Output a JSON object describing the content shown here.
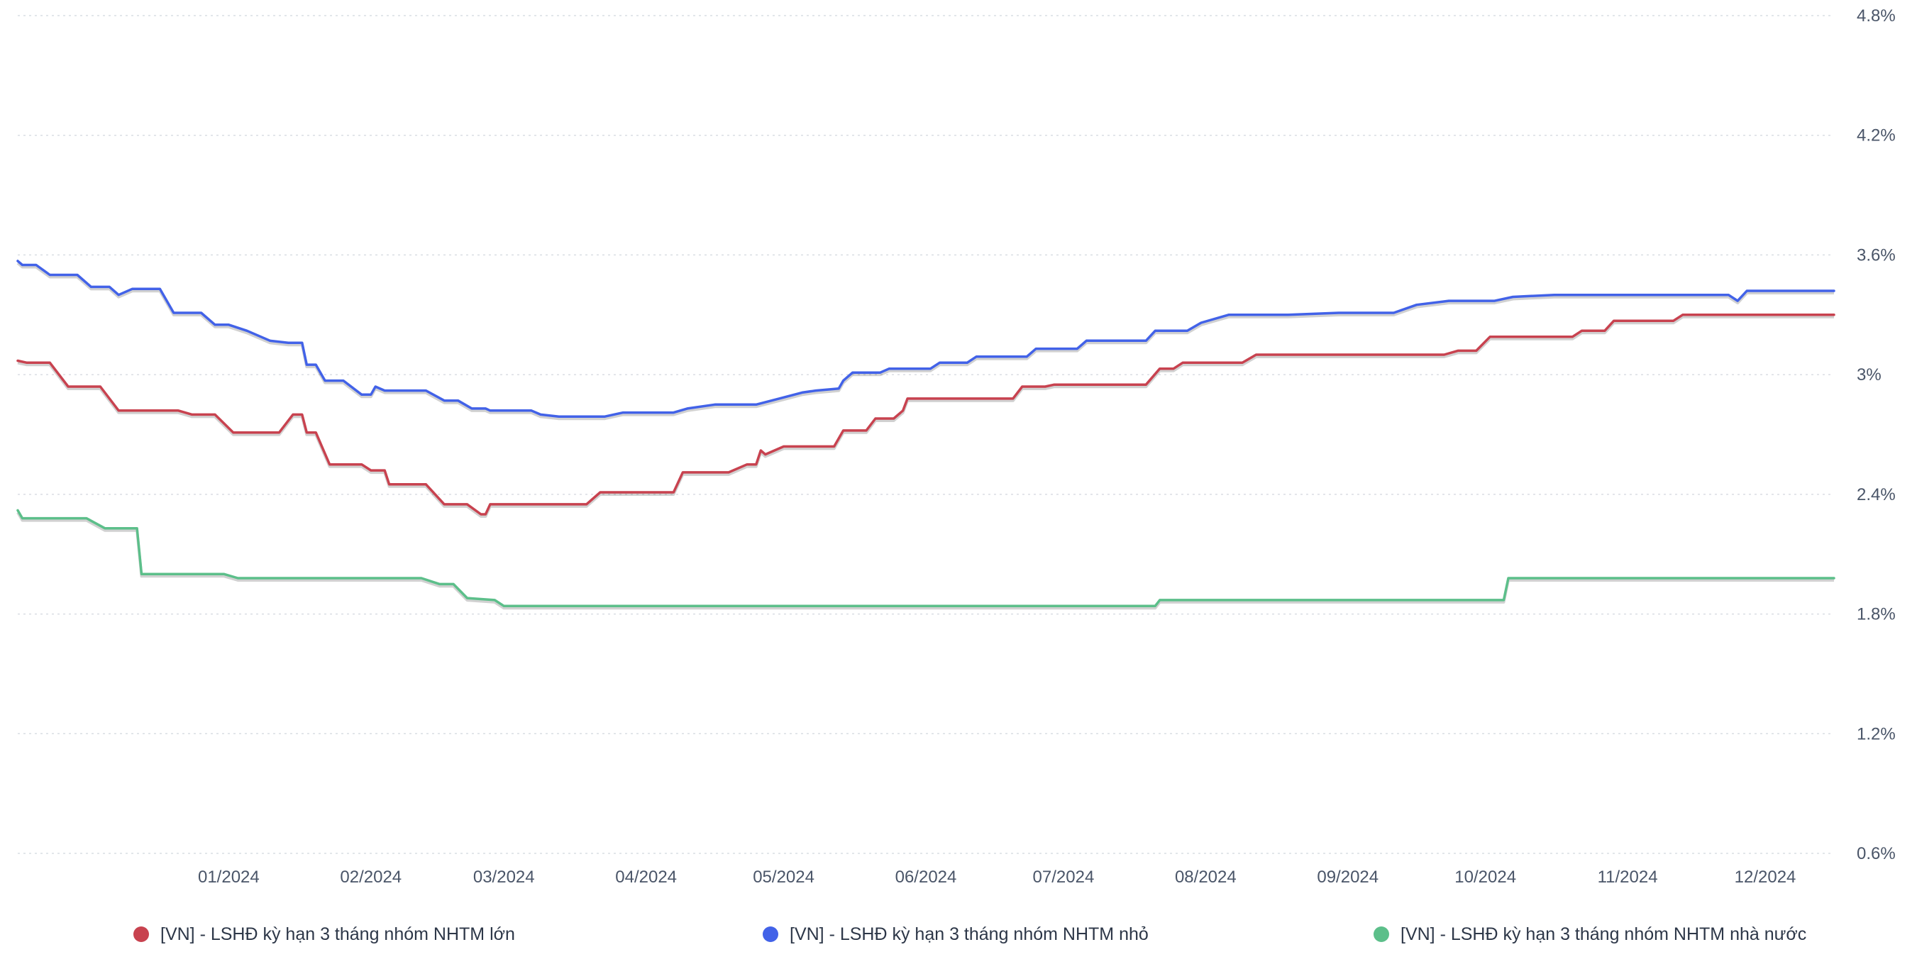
{
  "chart_data": {
    "type": "line",
    "x_tick_labels": [
      "01/2024",
      "02/2024",
      "03/2024",
      "04/2024",
      "05/2024",
      "06/2024",
      "07/2024",
      "08/2024",
      "09/2024",
      "10/2024",
      "11/2024",
      "12/2024"
    ],
    "y_tick_labels": [
      "4.8%",
      "4.2%",
      "3.6%",
      "3%",
      "2.4%",
      "1.8%",
      "1.2%",
      "0.6%"
    ],
    "y_ticks": [
      4.8,
      4.2,
      3.6,
      3.0,
      2.4,
      1.8,
      1.2,
      0.6
    ],
    "ylim": [
      0.6,
      4.8
    ],
    "xlim": [
      "2023-12-01",
      "2024-12-31"
    ],
    "grid": true,
    "legend_position": "bottom",
    "series": [
      {
        "name": "[VN] - LSHĐ kỳ hạn 3 tháng nhóm NHTM lớn",
        "color": "#c8424f",
        "points": [
          [
            "2023-12-01",
            3.07
          ],
          [
            "2023-12-03",
            3.06
          ],
          [
            "2023-12-08",
            3.06
          ],
          [
            "2023-12-12",
            2.94
          ],
          [
            "2023-12-19",
            2.94
          ],
          [
            "2023-12-23",
            2.82
          ],
          [
            "2024-01-05",
            2.82
          ],
          [
            "2024-01-08",
            2.8
          ],
          [
            "2024-01-13",
            2.8
          ],
          [
            "2024-01-17",
            2.71
          ],
          [
            "2024-01-27",
            2.71
          ],
          [
            "2024-01-30",
            2.8
          ],
          [
            "2024-02-01",
            2.8
          ],
          [
            "2024-02-02",
            2.71
          ],
          [
            "2024-02-04",
            2.71
          ],
          [
            "2024-02-07",
            2.55
          ],
          [
            "2024-02-14",
            2.55
          ],
          [
            "2024-02-16",
            2.52
          ],
          [
            "2024-02-19",
            2.52
          ],
          [
            "2024-02-20",
            2.45
          ],
          [
            "2024-02-28",
            2.45
          ],
          [
            "2024-03-03",
            2.35
          ],
          [
            "2024-03-08",
            2.35
          ],
          [
            "2024-03-11",
            2.3
          ],
          [
            "2024-03-12",
            2.3
          ],
          [
            "2024-03-13",
            2.35
          ],
          [
            "2024-04-03",
            2.35
          ],
          [
            "2024-04-06",
            2.41
          ],
          [
            "2024-04-22",
            2.41
          ],
          [
            "2024-04-24",
            2.51
          ],
          [
            "2024-05-04",
            2.51
          ],
          [
            "2024-05-08",
            2.55
          ],
          [
            "2024-05-10",
            2.55
          ],
          [
            "2024-05-11",
            2.62
          ],
          [
            "2024-05-12",
            2.6
          ],
          [
            "2024-05-16",
            2.64
          ],
          [
            "2024-05-27",
            2.64
          ],
          [
            "2024-05-29",
            2.72
          ],
          [
            "2024-06-03",
            2.72
          ],
          [
            "2024-06-05",
            2.78
          ],
          [
            "2024-06-09",
            2.78
          ],
          [
            "2024-06-11",
            2.82
          ],
          [
            "2024-06-12",
            2.88
          ],
          [
            "2024-07-05",
            2.88
          ],
          [
            "2024-07-07",
            2.94
          ],
          [
            "2024-07-12",
            2.94
          ],
          [
            "2024-07-14",
            2.95
          ],
          [
            "2024-08-03",
            2.95
          ],
          [
            "2024-08-06",
            3.03
          ],
          [
            "2024-08-09",
            3.03
          ],
          [
            "2024-08-11",
            3.06
          ],
          [
            "2024-08-24",
            3.06
          ],
          [
            "2024-08-27",
            3.1
          ],
          [
            "2024-10-07",
            3.1
          ],
          [
            "2024-10-10",
            3.12
          ],
          [
            "2024-10-14",
            3.12
          ],
          [
            "2024-10-17",
            3.19
          ],
          [
            "2024-11-04",
            3.19
          ],
          [
            "2024-11-06",
            3.22
          ],
          [
            "2024-11-11",
            3.22
          ],
          [
            "2024-11-13",
            3.27
          ],
          [
            "2024-11-26",
            3.27
          ],
          [
            "2024-11-28",
            3.3
          ],
          [
            "2024-12-31",
            3.3
          ]
        ]
      },
      {
        "name": "[VN] - LSHĐ kỳ hạn 3 tháng nhóm NHTM nhỏ",
        "color": "#4262e8",
        "points": [
          [
            "2023-12-01",
            3.57
          ],
          [
            "2023-12-02",
            3.55
          ],
          [
            "2023-12-05",
            3.55
          ],
          [
            "2023-12-08",
            3.5
          ],
          [
            "2023-12-14",
            3.5
          ],
          [
            "2023-12-17",
            3.44
          ],
          [
            "2023-12-21",
            3.44
          ],
          [
            "2023-12-23",
            3.4
          ],
          [
            "2023-12-26",
            3.43
          ],
          [
            "2024-01-01",
            3.43
          ],
          [
            "2024-01-04",
            3.31
          ],
          [
            "2024-01-10",
            3.31
          ],
          [
            "2024-01-13",
            3.25
          ],
          [
            "2024-01-16",
            3.25
          ],
          [
            "2024-01-20",
            3.22
          ],
          [
            "2024-01-25",
            3.17
          ],
          [
            "2024-01-29",
            3.16
          ],
          [
            "2024-02-01",
            3.16
          ],
          [
            "2024-02-02",
            3.05
          ],
          [
            "2024-02-04",
            3.05
          ],
          [
            "2024-02-06",
            2.97
          ],
          [
            "2024-02-10",
            2.97
          ],
          [
            "2024-02-14",
            2.9
          ],
          [
            "2024-02-16",
            2.9
          ],
          [
            "2024-02-17",
            2.94
          ],
          [
            "2024-02-19",
            2.92
          ],
          [
            "2024-02-28",
            2.92
          ],
          [
            "2024-03-03",
            2.87
          ],
          [
            "2024-03-06",
            2.87
          ],
          [
            "2024-03-09",
            2.83
          ],
          [
            "2024-03-12",
            2.83
          ],
          [
            "2024-03-13",
            2.82
          ],
          [
            "2024-03-22",
            2.82
          ],
          [
            "2024-03-24",
            2.8
          ],
          [
            "2024-03-28",
            2.79
          ],
          [
            "2024-04-07",
            2.79
          ],
          [
            "2024-04-11",
            2.81
          ],
          [
            "2024-04-22",
            2.81
          ],
          [
            "2024-04-25",
            2.83
          ],
          [
            "2024-05-01",
            2.85
          ],
          [
            "2024-05-10",
            2.85
          ],
          [
            "2024-05-15",
            2.88
          ],
          [
            "2024-05-20",
            2.91
          ],
          [
            "2024-05-23",
            2.92
          ],
          [
            "2024-05-28",
            2.93
          ],
          [
            "2024-05-29",
            2.97
          ],
          [
            "2024-05-31",
            3.01
          ],
          [
            "2024-06-06",
            3.01
          ],
          [
            "2024-06-08",
            3.03
          ],
          [
            "2024-06-17",
            3.03
          ],
          [
            "2024-06-19",
            3.06
          ],
          [
            "2024-06-25",
            3.06
          ],
          [
            "2024-06-27",
            3.09
          ],
          [
            "2024-07-08",
            3.09
          ],
          [
            "2024-07-10",
            3.13
          ],
          [
            "2024-07-19",
            3.13
          ],
          [
            "2024-07-21",
            3.17
          ],
          [
            "2024-08-03",
            3.17
          ],
          [
            "2024-08-05",
            3.22
          ],
          [
            "2024-08-12",
            3.22
          ],
          [
            "2024-08-15",
            3.26
          ],
          [
            "2024-08-21",
            3.3
          ],
          [
            "2024-09-03",
            3.3
          ],
          [
            "2024-09-14",
            3.31
          ],
          [
            "2024-09-26",
            3.31
          ],
          [
            "2024-10-01",
            3.35
          ],
          [
            "2024-10-08",
            3.37
          ],
          [
            "2024-10-18",
            3.37
          ],
          [
            "2024-10-22",
            3.39
          ],
          [
            "2024-10-31",
            3.4
          ],
          [
            "2024-12-08",
            3.4
          ],
          [
            "2024-12-10",
            3.37
          ],
          [
            "2024-12-12",
            3.42
          ],
          [
            "2024-12-31",
            3.42
          ]
        ]
      },
      {
        "name": "[VN] - LSHĐ kỳ hạn 3 tháng nhóm NHTM nhà nước",
        "color": "#5cbf8a",
        "points": [
          [
            "2023-12-01",
            2.32
          ],
          [
            "2023-12-02",
            2.28
          ],
          [
            "2023-12-16",
            2.28
          ],
          [
            "2023-12-20",
            2.23
          ],
          [
            "2023-12-27",
            2.23
          ],
          [
            "2023-12-28",
            2.0
          ],
          [
            "2024-01-15",
            2.0
          ],
          [
            "2024-01-18",
            1.98
          ],
          [
            "2024-02-27",
            1.98
          ],
          [
            "2024-03-02",
            1.95
          ],
          [
            "2024-03-05",
            1.95
          ],
          [
            "2024-03-08",
            1.88
          ],
          [
            "2024-03-14",
            1.87
          ],
          [
            "2024-03-16",
            1.84
          ],
          [
            "2024-08-05",
            1.84
          ],
          [
            "2024-08-06",
            1.87
          ],
          [
            "2024-10-20",
            1.87
          ],
          [
            "2024-10-21",
            1.98
          ],
          [
            "2024-12-31",
            1.98
          ]
        ]
      }
    ]
  },
  "legend": [
    {
      "label": "[VN] - LSHĐ kỳ hạn 3 tháng nhóm NHTM lớn",
      "color": "#c8424f"
    },
    {
      "label": "[VN] - LSHĐ kỳ hạn 3 tháng nhóm NHTM nhỏ",
      "color": "#4262e8"
    },
    {
      "label": "[VN] - LSHĐ kỳ hạn 3 tháng nhóm NHTM nhà nước",
      "color": "#5cbf8a"
    }
  ]
}
